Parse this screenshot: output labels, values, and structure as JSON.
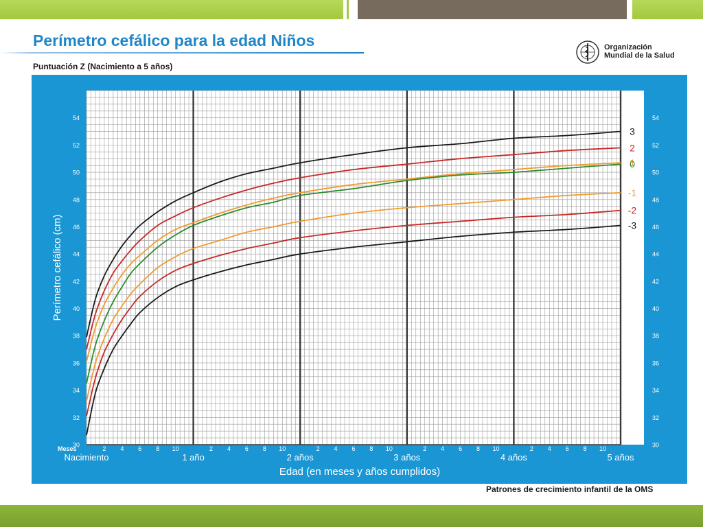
{
  "slide": {
    "title": "Perímetro cefálico para la edad  Niños",
    "subtitle": "Puntuación Z (Nacimiento a 5 años)",
    "logo_text_line1": "Organización",
    "logo_text_line2": "Mundial de la Salud",
    "footer": "Patrones de crecimiento infantil de la OMS",
    "colors": {
      "panel": "#1a96d4",
      "plot": "#ffffff",
      "title": "#1f86c8",
      "topbar_green": "#a3c83f",
      "topbar_gray": "#776b5e",
      "bottombar_green": "#8db63a"
    }
  },
  "chart_data": {
    "type": "line",
    "title": "Perímetro cefálico para la edad  Niños",
    "subtitle": "Puntuación Z (Nacimiento a 5 años)",
    "xlabel": "Edad (en meses y años cumplidos)",
    "ylabel": "Perímetro cefálico (cm)",
    "x_unit_label": "Meses",
    "xlim": [
      0,
      60
    ],
    "ylim": [
      30,
      56
    ],
    "y_ticks": [
      30,
      32,
      34,
      36,
      38,
      40,
      42,
      44,
      46,
      48,
      50,
      52,
      54
    ],
    "x_month_ticks": [
      2,
      4,
      6,
      8,
      10
    ],
    "x_year_labels": [
      {
        "month": 0,
        "label": "Nacimiento"
      },
      {
        "month": 12,
        "label": "1 año"
      },
      {
        "month": 24,
        "label": "2 años"
      },
      {
        "month": 36,
        "label": "3 años"
      },
      {
        "month": 48,
        "label": "4 años"
      },
      {
        "month": 60,
        "label": "5 años"
      }
    ],
    "grid": true,
    "legend": "right",
    "x": [
      0,
      1,
      2,
      3,
      4,
      5,
      6,
      8,
      10,
      12,
      15,
      18,
      21,
      24,
      30,
      36,
      42,
      48,
      54,
      60
    ],
    "series": [
      {
        "name": "3",
        "color": "#1a1a1a",
        "values": [
          37.9,
          40.7,
          42.4,
          43.6,
          44.6,
          45.4,
          46.1,
          47.1,
          47.9,
          48.5,
          49.3,
          49.9,
          50.3,
          50.7,
          51.3,
          51.8,
          52.1,
          52.5,
          52.7,
          53.0
        ]
      },
      {
        "name": "2",
        "color": "#c62828",
        "values": [
          37.0,
          39.6,
          41.3,
          42.6,
          43.5,
          44.3,
          45.0,
          46.1,
          46.8,
          47.4,
          48.1,
          48.7,
          49.2,
          49.6,
          50.2,
          50.6,
          51.0,
          51.3,
          51.6,
          51.8
        ]
      },
      {
        "name": "1",
        "color": "#f29a2e",
        "values": [
          36.1,
          38.6,
          40.3,
          41.5,
          42.5,
          43.3,
          43.9,
          45.0,
          45.8,
          46.3,
          47.0,
          47.6,
          48.1,
          48.5,
          49.1,
          49.5,
          49.9,
          50.2,
          50.5,
          50.7
        ]
      },
      {
        "name": "0",
        "color": "#2e8b2e",
        "values": [
          34.5,
          37.3,
          39.1,
          40.5,
          41.6,
          42.6,
          43.3,
          44.5,
          45.4,
          46.1,
          46.8,
          47.4,
          47.8,
          48.3,
          48.8,
          49.4,
          49.8,
          50.0,
          50.3,
          50.6
        ]
      },
      {
        "name": "-1",
        "color": "#f29a2e",
        "values": [
          33.2,
          36.0,
          37.8,
          39.2,
          40.2,
          41.1,
          41.8,
          43.0,
          43.8,
          44.4,
          45.0,
          45.6,
          46.0,
          46.4,
          47.0,
          47.4,
          47.7,
          48.0,
          48.3,
          48.5
        ]
      },
      {
        "name": "-2",
        "color": "#c62828",
        "values": [
          32.1,
          34.9,
          36.8,
          38.1,
          39.2,
          40.1,
          40.9,
          42.0,
          42.8,
          43.3,
          43.9,
          44.4,
          44.8,
          45.2,
          45.7,
          46.1,
          46.4,
          46.7,
          46.9,
          47.2
        ]
      },
      {
        "name": "-3",
        "color": "#1a1a1a",
        "values": [
          30.7,
          33.8,
          35.6,
          37.0,
          38.0,
          38.9,
          39.7,
          40.8,
          41.6,
          42.1,
          42.7,
          43.2,
          43.6,
          44.0,
          44.5,
          44.9,
          45.3,
          45.6,
          45.8,
          46.1
        ]
      }
    ]
  }
}
